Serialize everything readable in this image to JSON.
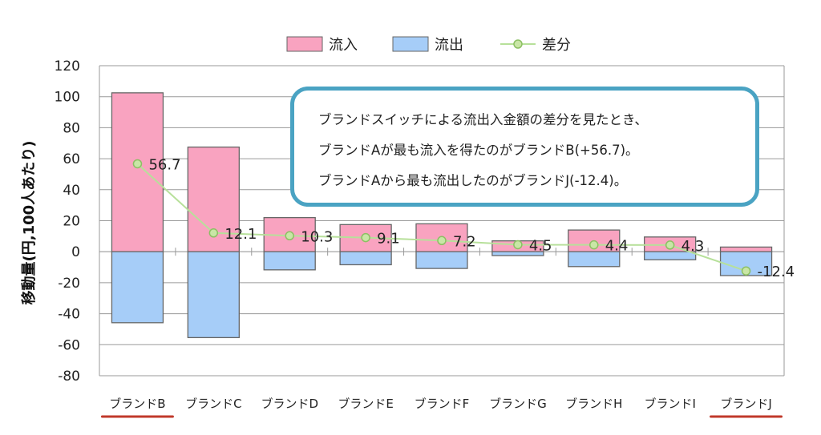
{
  "chart_data": {
    "type": "bar",
    "stacked": true,
    "categories": [
      "ブランドB",
      "ブランドC",
      "ブランドD",
      "ブランドE",
      "ブランドF",
      "ブランドG",
      "ブランドH",
      "ブランドI",
      "ブランドJ"
    ],
    "series": [
      {
        "name": "流入",
        "type": "bar",
        "color": "#f9a3c0",
        "values": [
          102.5,
          67.5,
          22,
          17.5,
          18,
          7,
          14,
          9.5,
          3
        ]
      },
      {
        "name": "流出",
        "type": "bar",
        "color": "#a6cdf8",
        "values": [
          -45.8,
          -55.4,
          -11.7,
          -8.4,
          -10.8,
          -2.5,
          -9.6,
          -5.2,
          -15.4
        ]
      },
      {
        "name": "差分",
        "type": "line",
        "color": "#b7e09a",
        "values": [
          56.7,
          12.1,
          10.3,
          9.1,
          7.2,
          4.5,
          4.4,
          4.3,
          -12.4
        ]
      }
    ],
    "data_labels": [
      "56.7",
      "12.1",
      "10.3",
      "9.1",
      "7.2",
      "4.5",
      "4.4",
      "4.3",
      "-12.4"
    ],
    "ylabel": "移動量(円,100人あたり)",
    "ylim": [
      -80,
      120
    ],
    "yticks": [
      -80,
      -60,
      -40,
      -20,
      0,
      20,
      40,
      60,
      80,
      100,
      120
    ],
    "grid": true,
    "legend_position": "top-center",
    "underlined_categories": [
      "ブランドB",
      "ブランドJ"
    ],
    "underline_color": "#c0392b"
  },
  "callout": {
    "lines": [
      "ブランドスイッチによる流出入金額の差分を見たとき、",
      "ブランドAが最も流入を得たのがブランドB(+56.7)。",
      "ブランドAから最も流出したのがブランドJ(-12.4)。"
    ],
    "border_color": "#4aa3c3"
  }
}
